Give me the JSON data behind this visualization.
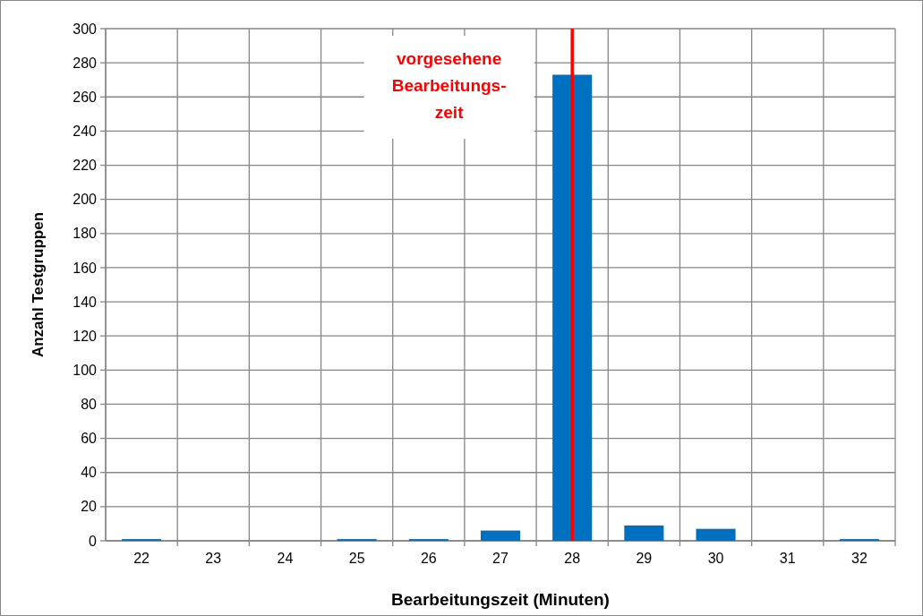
{
  "chart_data": {
    "type": "bar",
    "xlabel": "Bearbeitungszeit (Minuten)",
    "ylabel": "Anzahl Testgruppen",
    "categories": [
      "22",
      "23",
      "24",
      "25",
      "26",
      "27",
      "28",
      "29",
      "30",
      "31",
      "32"
    ],
    "values": [
      1,
      0,
      0,
      1,
      1,
      6,
      273,
      9,
      7,
      0,
      1
    ],
    "color": "#0070c0",
    "ylim": [
      0,
      300
    ],
    "yticks": [
      0,
      20,
      40,
      60,
      80,
      100,
      120,
      140,
      160,
      180,
      200,
      220,
      240,
      260,
      280,
      300
    ],
    "grid": true,
    "ref_lines": [
      {
        "axis": "x",
        "value": "28",
        "label": "vorgesehene Bearbeitungs-zeit",
        "color": "#ff0000"
      }
    ]
  }
}
